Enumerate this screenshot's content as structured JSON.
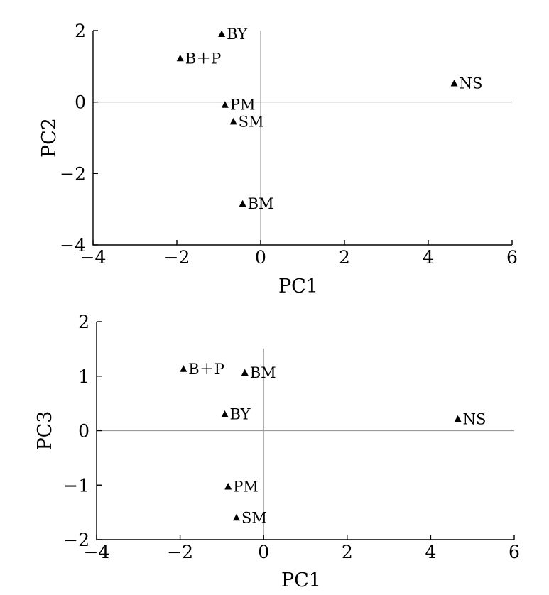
{
  "chart_data": [
    {
      "type": "scatter",
      "title": "",
      "xlabel": "PC1",
      "ylabel": "PC2",
      "xlim": [
        -4,
        6
      ],
      "ylim": [
        -4,
        2
      ],
      "xticks": [
        -4,
        -2,
        0,
        2,
        4,
        6
      ],
      "yticks": [
        -4,
        -2,
        0,
        2
      ],
      "xtick_labels": [
        "−4",
        "−2",
        "0",
        "2",
        "4",
        "6"
      ],
      "ytick_labels": [
        "−4",
        "−2",
        "0",
        "2"
      ],
      "grid": false,
      "reference_lines": {
        "x": 0,
        "y": 0,
        "color": "#9a9a9a"
      },
      "marker": "triangle",
      "marker_color": "#000000",
      "points": [
        {
          "label": "BY",
          "x": -0.93,
          "y": 1.9
        },
        {
          "label": "B＋P",
          "x": -1.92,
          "y": 1.22
        },
        {
          "label": "NS",
          "x": 4.62,
          "y": 0.52
        },
        {
          "label": "PM",
          "x": -0.85,
          "y": -0.08
        },
        {
          "label": "SM",
          "x": -0.65,
          "y": -0.55
        },
        {
          "label": "BM",
          "x": -0.43,
          "y": -2.85
        }
      ]
    },
    {
      "type": "scatter",
      "title": "",
      "xlabel": "PC1",
      "ylabel": "PC3",
      "xlim": [
        -4,
        6
      ],
      "ylim": [
        -2,
        2
      ],
      "xticks": [
        -4,
        -2,
        0,
        2,
        4,
        6
      ],
      "yticks": [
        -2,
        -1,
        0,
        1,
        2
      ],
      "xtick_labels": [
        "−4",
        "−2",
        "0",
        "2",
        "4",
        "6"
      ],
      "ytick_labels": [
        "−2",
        "−1",
        "0",
        "1",
        "2"
      ],
      "grid": false,
      "reference_lines": {
        "x": 0,
        "y": 0,
        "color": "#9a9a9a"
      },
      "marker": "triangle",
      "marker_color": "#000000",
      "points": [
        {
          "label": "B＋P",
          "x": -1.92,
          "y": 1.13
        },
        {
          "label": "BM",
          "x": -0.45,
          "y": 1.06
        },
        {
          "label": "BY",
          "x": -0.93,
          "y": 0.3
        },
        {
          "label": "NS",
          "x": 4.65,
          "y": 0.21
        },
        {
          "label": "PM",
          "x": -0.85,
          "y": -1.03
        },
        {
          "label": "SM",
          "x": -0.65,
          "y": -1.6
        }
      ]
    }
  ]
}
